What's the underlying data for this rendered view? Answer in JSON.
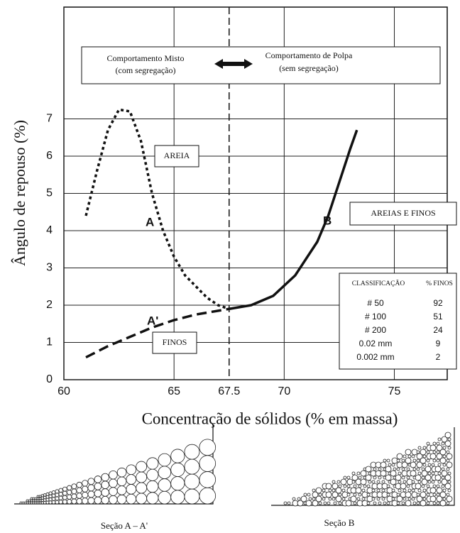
{
  "chart_data": {
    "type": "line",
    "xlabel": "Concentração de sólidos (% em massa)",
    "ylabel": "Ângulo de repouso (%)",
    "xlim": [
      60,
      77.4
    ],
    "ylim": [
      0,
      10
    ],
    "xticks": [
      60,
      65,
      67.5,
      70,
      75
    ],
    "yticks": [
      0,
      1,
      2,
      3,
      4,
      5,
      6,
      7
    ],
    "grid": true,
    "vline": 67.5,
    "series": [
      {
        "name": "A",
        "color": "#111",
        "dash": "dot",
        "x": [
          61,
          61.5,
          62,
          62.5,
          63,
          63.5,
          64,
          64.5,
          65,
          65.5,
          66,
          66.5,
          67,
          67.5
        ],
        "values": [
          4.4,
          5.6,
          6.7,
          7.25,
          7.2,
          6.4,
          5.0,
          4.0,
          3.3,
          2.8,
          2.5,
          2.2,
          2.0,
          1.9
        ]
      },
      {
        "name": "A'",
        "color": "#111",
        "dash": "dash",
        "x": [
          61,
          62,
          63,
          64,
          65,
          66,
          67,
          67.5
        ],
        "values": [
          0.6,
          0.9,
          1.15,
          1.4,
          1.6,
          1.75,
          1.85,
          1.9
        ]
      },
      {
        "name": "B",
        "color": "#111",
        "dash": "solid",
        "x": [
          67.5,
          68.5,
          69.5,
          70.5,
          71.5,
          72,
          72.5,
          73,
          73.3
        ],
        "values": [
          1.9,
          2.0,
          2.25,
          2.8,
          3.7,
          4.4,
          5.3,
          6.2,
          6.7
        ]
      }
    ],
    "regions": {
      "left": "Comportamento Misto",
      "left_sub": "(com segregação)",
      "right": "Comportamento de Polpa",
      "right_sub": "(sem segregação)"
    },
    "labels": {
      "sand": "AREIA",
      "fines": "FINOS",
      "mixed": "AREIAS E FINOS"
    },
    "table": {
      "header": [
        "CLASSIFICAÇÃO",
        "% FINOS"
      ],
      "rows": [
        [
          "# 50",
          92
        ],
        [
          "# 100",
          51
        ],
        [
          "# 200",
          24
        ],
        [
          "0.02 mm",
          9
        ],
        [
          "0.002 mm",
          2
        ]
      ]
    }
  },
  "sections": [
    "Seção  A – A'",
    "Seção  B"
  ]
}
